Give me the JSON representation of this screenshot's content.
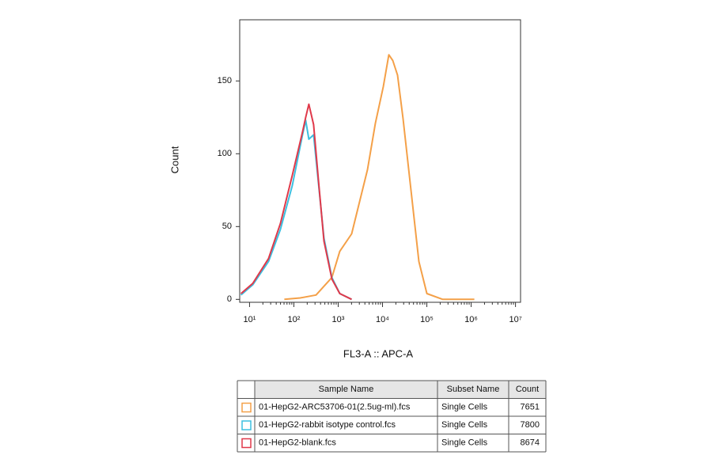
{
  "chart_data": {
    "type": "line",
    "x_label": "FL3-A :: APC-A",
    "y_label": "Count",
    "log_x": true,
    "xlim": [
      6,
      13000000
    ],
    "xticks": [
      {
        "value": 10,
        "label": "10¹"
      },
      {
        "value": 100,
        "label": "10²"
      },
      {
        "value": 1000,
        "label": "10³"
      },
      {
        "value": 10000,
        "label": "10⁴"
      },
      {
        "value": 100000,
        "label": "10⁵"
      },
      {
        "value": 1000000,
        "label": "10⁶"
      },
      {
        "value": 10000000,
        "label": "10⁷"
      }
    ],
    "ylim": [
      -2,
      192
    ],
    "yticks": [
      0,
      50,
      100,
      150
    ],
    "series": [
      {
        "name": "01-HepG2-ARC53706-01(2.5ug-ml).fcs",
        "color": "#f4a048",
        "x": [
          61,
          139,
          316,
          720,
          1086,
          2014,
          3036,
          4580,
          6907,
          10420,
          13900,
          17070,
          21840,
          29130,
          43940,
          66270,
          100000,
          227600,
          1178000
        ],
        "values": [
          0,
          1,
          3,
          15,
          33,
          45,
          67,
          89,
          121,
          146,
          168,
          164,
          154,
          124,
          75,
          26,
          4,
          0,
          0
        ]
      },
      {
        "name": "01-HepG2-rabbit isotype control.fcs",
        "color": "#3cbfe0",
        "x": [
          6.4,
          11.8,
          26.8,
          49.7,
          92,
          157,
          185,
          218,
          279,
          358,
          477,
          720,
          1086,
          2014
        ],
        "values": [
          3,
          10,
          26,
          48,
          78,
          113,
          123,
          110,
          113,
          80,
          42,
          15,
          4,
          0
        ]
      },
      {
        "name": "01-HepG2-blank.fcs",
        "color": "#e0394a",
        "x": [
          6.4,
          11.8,
          26.8,
          49.7,
          92,
          157,
          185,
          218,
          279,
          358,
          477,
          720,
          1086,
          2014
        ],
        "values": [
          4,
          11,
          28,
          52,
          85,
          115,
          125,
          134,
          120,
          82,
          40,
          14,
          4,
          0
        ]
      }
    ],
    "legend_table": {
      "columns": [
        "Sample Name",
        "Subset Name",
        "Count"
      ],
      "rows": [
        [
          "Single Cells",
          "7651"
        ],
        [
          "Single Cells",
          "7800"
        ],
        [
          "Single Cells",
          "8674"
        ]
      ]
    }
  }
}
